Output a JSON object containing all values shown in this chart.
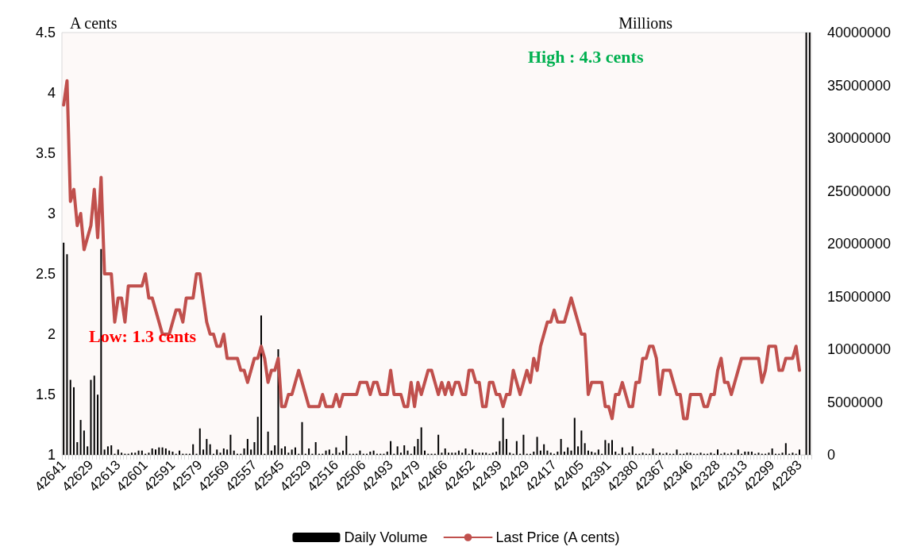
{
  "chart_data": {
    "type": "bar",
    "ylabel": "A cents",
    "y2label": "Millions",
    "annotations": [
      "High : 4.3 cents",
      "Low: 1.3 cents"
    ],
    "categories": [
      "42641",
      null,
      null,
      null,
      null,
      null,
      null,
      null,
      "42629",
      null,
      null,
      null,
      null,
      null,
      null,
      null,
      "42613",
      null,
      null,
      null,
      null,
      null,
      null,
      null,
      "42601",
      null,
      null,
      null,
      null,
      null,
      null,
      null,
      "42591",
      null,
      null,
      null,
      null,
      null,
      null,
      null,
      "42579",
      null,
      null,
      null,
      null,
      null,
      null,
      null,
      "42569",
      null,
      null,
      null,
      null,
      null,
      null,
      null,
      "42557",
      null,
      null,
      null,
      null,
      null,
      null,
      null,
      "42545",
      null,
      null,
      null,
      null,
      null,
      null,
      null,
      "42529",
      null,
      null,
      null,
      null,
      null,
      null,
      null,
      "42516",
      null,
      null,
      null,
      null,
      null,
      null,
      null,
      "42506",
      null,
      null,
      null,
      null,
      null,
      null,
      null,
      "42493",
      null,
      null,
      null,
      null,
      null,
      null,
      null,
      "42479",
      null,
      null,
      null,
      null,
      null,
      null,
      null,
      "42466",
      null,
      null,
      null,
      null,
      null,
      null,
      null,
      "42452",
      null,
      null,
      null,
      null,
      null,
      null,
      null,
      "42439",
      null,
      null,
      null,
      null,
      null,
      null,
      null,
      "42429",
      null,
      null,
      null,
      null,
      null,
      null,
      null,
      "42417",
      null,
      null,
      null,
      null,
      null,
      null,
      null,
      "42405",
      null,
      null,
      null,
      null,
      null,
      null,
      null,
      "42391",
      null,
      null,
      null,
      null,
      null,
      null,
      null,
      "42380",
      null,
      null,
      null,
      null,
      null,
      null,
      null,
      "42367",
      null,
      null,
      null,
      null,
      null,
      null,
      null,
      "42346",
      null,
      null,
      null,
      null,
      null,
      null,
      null,
      "42328",
      null,
      null,
      null,
      null,
      null,
      null,
      null,
      "42313",
      null,
      null,
      null,
      null,
      null,
      null,
      null,
      "42299",
      null,
      null,
      null,
      null,
      null,
      null,
      null,
      "42283",
      null,
      null,
      null
    ],
    "series": [
      {
        "name": "Daily Volume",
        "axis": "y2",
        "color": "#000000",
        "values": [
          20100000,
          19000000,
          7100000,
          6400000,
          1200000,
          3300000,
          2300000,
          800000,
          7100000,
          7500000,
          5700000,
          19500000,
          500000,
          800000,
          900000,
          100000,
          500000,
          200000,
          100000,
          100000,
          200000,
          200000,
          400000,
          400000,
          100000,
          200000,
          600000,
          500000,
          700000,
          700000,
          600000,
          400000,
          300000,
          100000,
          400000,
          100000,
          100000,
          100000,
          1000000,
          100000,
          2500000,
          500000,
          1500000,
          1000000,
          100000,
          500000,
          200000,
          600000,
          500000,
          1900000,
          400000,
          100000,
          100000,
          600000,
          1500000,
          500000,
          1200000,
          3600000,
          13200000,
          100000,
          2200000,
          400000,
          900000,
          10000000,
          600000,
          800000,
          200000,
          500000,
          700000,
          100000,
          3100000,
          100000,
          600000,
          100000,
          1200000,
          100000,
          100000,
          400000,
          500000,
          100000,
          700000,
          200000,
          400000,
          1800000,
          100000,
          100000,
          100000,
          400000,
          100000,
          100000,
          300000,
          400000,
          100000,
          100000,
          100000,
          300000,
          1300000,
          100000,
          800000,
          200000,
          900000,
          400000,
          100000,
          800000,
          1500000,
          2600000,
          400000,
          100000,
          100000,
          100000,
          1900000,
          200000,
          600000,
          200000,
          200000,
          200000,
          400000,
          200000,
          600000,
          100000,
          500000,
          200000,
          200000,
          200000,
          200000,
          100000,
          200000,
          300000,
          1300000,
          3500000,
          1500000,
          200000,
          100000,
          1300000,
          100000,
          1900000,
          100000,
          100000,
          300000,
          1700000,
          400000,
          1000000,
          400000,
          200000,
          100000,
          300000,
          1500000,
          300000,
          700000,
          400000,
          3500000,
          800000,
          2300000,
          1100000,
          400000,
          300000,
          200000,
          500000,
          100000,
          1400000,
          1100000,
          1400000,
          300000,
          100000,
          700000,
          100000,
          200000,
          800000,
          100000,
          100000,
          200000,
          100000,
          100000,
          600000,
          100000,
          200000,
          100000,
          200000,
          100000,
          100000,
          500000,
          100000,
          100000,
          200000,
          200000,
          100000,
          100000,
          200000,
          100000,
          100000,
          200000,
          100000,
          500000,
          100000,
          200000,
          100000,
          200000,
          100000,
          500000,
          100000,
          300000,
          300000,
          300000,
          100000,
          200000,
          100000,
          100000,
          200000,
          600000,
          100000,
          100000,
          200000,
          1100000,
          100000,
          200000,
          100000,
          500000,
          null,
          40000000,
          40000000
        ]
      },
      {
        "name": "Last Price (A cents)",
        "type": "line",
        "color": "#c0504d",
        "values": [
          3.9,
          4.1,
          3.1,
          3.2,
          2.9,
          3.0,
          2.7,
          2.8,
          2.9,
          3.2,
          2.8,
          3.3,
          2.5,
          2.5,
          2.5,
          2.1,
          2.3,
          2.3,
          2.1,
          2.4,
          2.4,
          2.4,
          2.4,
          2.4,
          2.5,
          2.3,
          2.3,
          2.2,
          2.1,
          2.0,
          2.0,
          2.0,
          2.1,
          2.2,
          2.2,
          2.1,
          2.3,
          2.3,
          2.3,
          2.5,
          2.5,
          2.3,
          2.1,
          2.0,
          2.0,
          1.9,
          1.9,
          2.0,
          1.8,
          1.8,
          1.8,
          1.8,
          1.7,
          1.7,
          1.6,
          1.7,
          1.8,
          1.8,
          1.9,
          1.8,
          1.6,
          1.7,
          1.7,
          1.8,
          1.4,
          1.4,
          1.5,
          1.5,
          1.6,
          1.7,
          1.6,
          1.5,
          1.4,
          1.4,
          1.4,
          1.4,
          1.5,
          1.4,
          1.4,
          1.4,
          1.5,
          1.4,
          1.5,
          1.5,
          1.5,
          1.5,
          1.5,
          1.6,
          1.6,
          1.6,
          1.5,
          1.6,
          1.6,
          1.5,
          1.5,
          1.5,
          1.7,
          1.5,
          1.5,
          1.5,
          1.4,
          1.4,
          1.6,
          1.4,
          1.6,
          1.5,
          1.6,
          1.7,
          1.7,
          1.6,
          1.5,
          1.6,
          1.5,
          1.6,
          1.5,
          1.6,
          1.6,
          1.5,
          1.5,
          1.7,
          1.7,
          1.6,
          1.6,
          1.4,
          1.4,
          1.6,
          1.6,
          1.5,
          1.5,
          1.4,
          1.5,
          1.5,
          1.7,
          1.6,
          1.5,
          1.6,
          1.7,
          1.6,
          1.8,
          1.7,
          1.9,
          2.0,
          2.1,
          2.1,
          2.2,
          2.1,
          2.1,
          2.1,
          2.2,
          2.3,
          2.2,
          2.1,
          2.0,
          2.0,
          1.5,
          1.6,
          1.6,
          1.6,
          1.6,
          1.4,
          1.4,
          1.3,
          1.5,
          1.5,
          1.6,
          1.5,
          1.4,
          1.4,
          1.6,
          1.6,
          1.8,
          1.8,
          1.9,
          1.9,
          1.8,
          1.5,
          1.7,
          1.7,
          1.7,
          1.6,
          1.5,
          1.5,
          1.3,
          1.3,
          1.5,
          1.5,
          1.5,
          1.5,
          1.4,
          1.4,
          1.5,
          1.5,
          1.7,
          1.8,
          1.6,
          1.6,
          1.5,
          1.6,
          1.7,
          1.8,
          1.8,
          1.8,
          1.8,
          1.8,
          1.8,
          1.6,
          1.7,
          1.9,
          1.9,
          1.9,
          1.7,
          1.7,
          1.8,
          1.8,
          1.8,
          1.9,
          1.7,
          null,
          null,
          null
        ]
      }
    ],
    "ylim": [
      1,
      4.5
    ],
    "yticks": [
      1,
      1.5,
      2,
      2.5,
      3,
      3.5,
      4,
      4.5
    ],
    "y2lim": [
      0,
      40000000
    ],
    "y2ticks": [
      0,
      5000000,
      10000000,
      15000000,
      20000000,
      25000000,
      30000000,
      35000000,
      40000000
    ],
    "legend": "bottom",
    "grid": false,
    "marker": "none",
    "line_style": "solid"
  }
}
